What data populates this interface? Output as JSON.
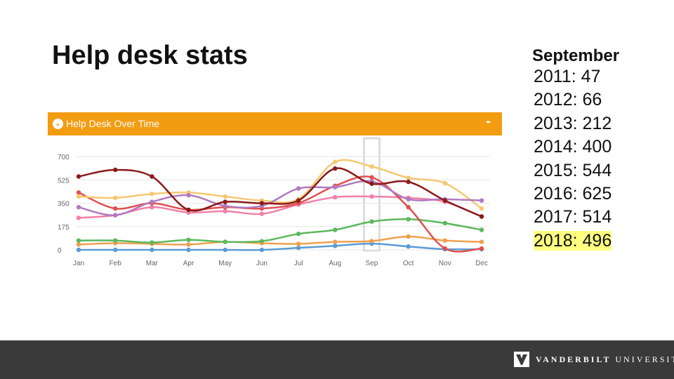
{
  "slide": {
    "title": "Help desk stats"
  },
  "stats": {
    "heading": "September",
    "lines": [
      {
        "year": "2011",
        "value": "47"
      },
      {
        "year": "2012",
        "value": "66"
      },
      {
        "year": "2013",
        "value": "212"
      },
      {
        "year": "2014",
        "value": "400"
      },
      {
        "year": "2015",
        "value": "544"
      },
      {
        "year": "2016",
        "value": "625"
      },
      {
        "year": "2017",
        "value": "514"
      },
      {
        "year": "2018",
        "value": "496"
      }
    ],
    "highlight_color": "#ffff80"
  },
  "panel": {
    "title": "Help Desk Over Time",
    "collapse_label": "-",
    "header_color": "#f39c12"
  },
  "chart_data": {
    "type": "line",
    "categories": [
      "Jan",
      "Feb",
      "Mar",
      "Apr",
      "May",
      "Jun",
      "Jul",
      "Aug",
      "Sep",
      "Oct",
      "Nov",
      "Dec"
    ],
    "y_ticks": [
      0,
      175,
      350,
      525,
      700
    ],
    "ylim": [
      0,
      700
    ],
    "grid": true,
    "legend": "none",
    "highlight_category": "Sep",
    "series": [
      {
        "color": "#5b9bd5",
        "values": [
          0,
          0,
          0,
          0,
          0,
          0,
          15,
          30,
          47,
          25,
          5,
          5
        ]
      },
      {
        "color": "#f0a050",
        "values": [
          40,
          50,
          45,
          40,
          60,
          50,
          45,
          60,
          66,
          100,
          70,
          60
        ]
      },
      {
        "color": "#5cb85c",
        "values": [
          70,
          70,
          55,
          75,
          60,
          65,
          120,
          150,
          212,
          230,
          200,
          150
        ]
      },
      {
        "color": "#f080a8",
        "values": [
          240,
          260,
          320,
          280,
          290,
          270,
          340,
          395,
          400,
          390,
          360,
          250
        ]
      },
      {
        "color": "#e05050",
        "values": [
          430,
          310,
          350,
          300,
          320,
          310,
          350,
          480,
          544,
          320,
          10,
          10
        ]
      },
      {
        "color": "#f5c870",
        "values": [
          400,
          390,
          420,
          430,
          400,
          370,
          380,
          660,
          625,
          540,
          500,
          310
        ]
      },
      {
        "color": "#b07ac0",
        "values": [
          320,
          260,
          360,
          410,
          330,
          330,
          460,
          470,
          514,
          380,
          380,
          370
        ]
      },
      {
        "color": "#8b1a1a",
        "values": [
          550,
          600,
          550,
          300,
          360,
          350,
          370,
          610,
          496,
          510,
          370,
          250
        ]
      }
    ]
  },
  "footer": {
    "logo_bold": "VANDERBILT",
    "logo_rest": " UNIVERSITY",
    "background": "#3a3a3a"
  }
}
